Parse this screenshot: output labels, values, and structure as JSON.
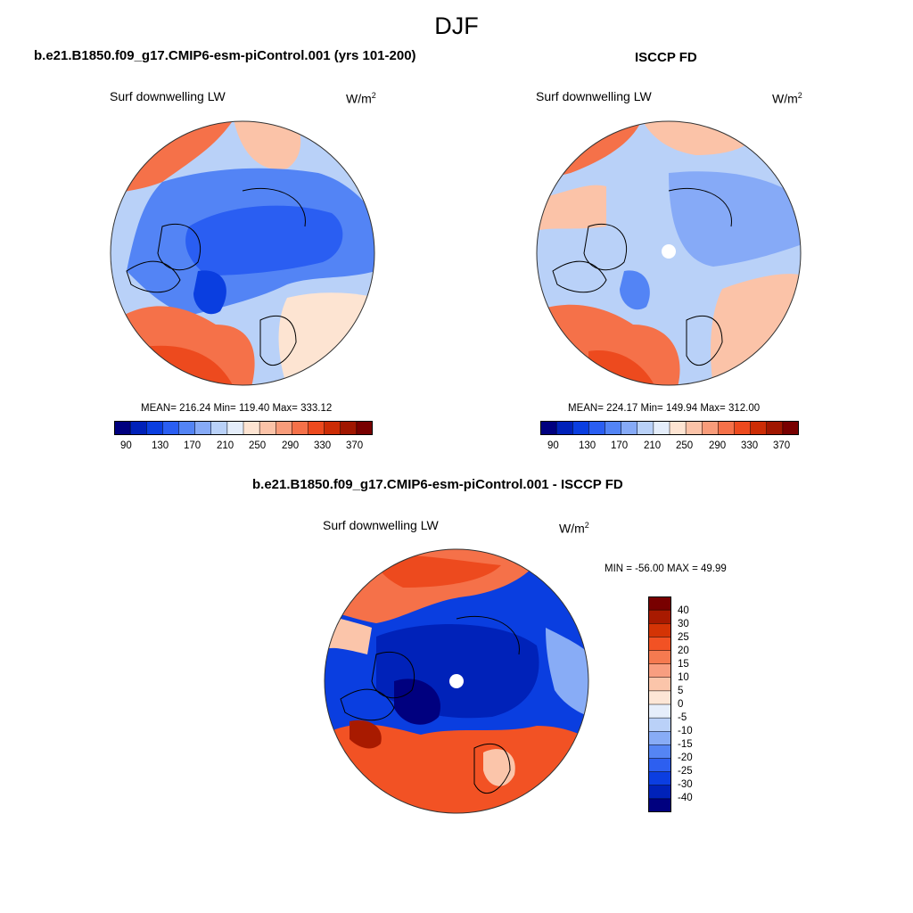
{
  "page": {
    "title": "DJF"
  },
  "panels": {
    "model": {
      "case_title": "b.e21.B1850.f09_g17.CMIP6-esm-piControl.001 (yrs 101-200)",
      "variable": "Surf downwelling LW",
      "units": "W/m",
      "units_exp": "2",
      "stats": "MEAN= 216.24  Min= 119.40  Max= 333.12"
    },
    "obs": {
      "case_title": "ISCCP FD",
      "variable": "Surf downwelling LW",
      "units": "W/m",
      "units_exp": "2",
      "stats": "MEAN= 224.17  Min= 149.94  Max= 312.00"
    },
    "diff": {
      "case_title": "b.e21.B1850.f09_g17.CMIP6-esm-piControl.001 - ISCCP FD",
      "variable": "Surf downwelling LW",
      "units": "W/m",
      "units_exp": "2",
      "stats": "MIN = -56.00 MAX =  49.99"
    }
  },
  "colorbars": {
    "absolute": {
      "tick_labels": [
        "90",
        "130",
        "170",
        "210",
        "250",
        "290",
        "330",
        "370"
      ],
      "colors": [
        "#00007f",
        "#0021b9",
        "#0a3ee0",
        "#2a5ef2",
        "#5384f5",
        "#86aaf7",
        "#b9d1f8",
        "#e4edfa",
        "#fde4d2",
        "#fbc3a8",
        "#f89c7a",
        "#f57149",
        "#ed4a1e",
        "#cc2c05",
        "#a01600",
        "#780000"
      ]
    },
    "difference": {
      "tick_labels": [
        "40",
        "30",
        "25",
        "20",
        "15",
        "10",
        "5",
        "0",
        "-5",
        "-10",
        "-15",
        "-20",
        "-25",
        "-30",
        "-40"
      ],
      "colors": [
        "#780000",
        "#a81a00",
        "#d43405",
        "#f25224",
        "#f57a50",
        "#f89e80",
        "#fbc5aa",
        "#fde6d6",
        "#e6eefb",
        "#bad1f8",
        "#88acf6",
        "#5585f4",
        "#2d5ff0",
        "#0b3ee1",
        "#0022b9",
        "#00007f"
      ]
    }
  },
  "map_colors": {
    "ocean_warm": "#f57149",
    "warm_light": "#fbc3a8",
    "cool_light": "#b9d1f8",
    "cool_mid": "#5384f5",
    "cool_deep": "#0a3ee0",
    "coastline": "#000000"
  }
}
